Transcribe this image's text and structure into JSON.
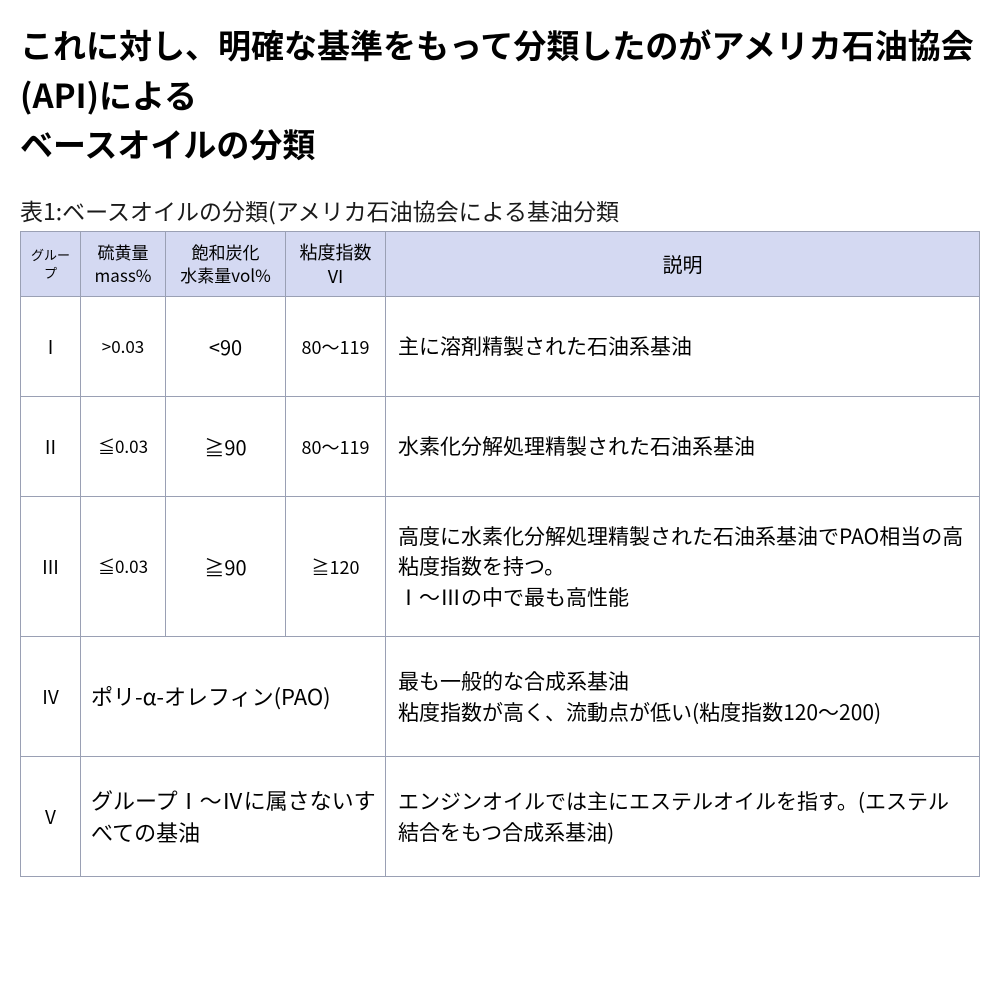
{
  "heading": "これに対し、明確な基準をもって分類したのがアメリカ石油協会(API)による\nベースオイルの分類",
  "caption": "表1:ベースオイルの分類(アメリカ石油協会による基油分類",
  "table": {
    "header_bg": "#d4d9f2",
    "border_color": "#9aa0b4",
    "columns": {
      "group": "グループ",
      "sulfur_l1": "硫黄量",
      "sulfur_l2": "mass%",
      "sat_l1": "飽和炭化",
      "sat_l2": "水素量vol%",
      "vi_l1": "粘度指数",
      "vi_l2": "VI",
      "desc": "説明"
    },
    "rows": [
      {
        "group": "I",
        "sulfur": ">0.03",
        "sat": "<90",
        "vi": "80〜119",
        "desc": "主に溶剤精製された石油系基油"
      },
      {
        "group": "II",
        "sulfur": "≦0.03",
        "sat": "≧90",
        "vi": "80〜119",
        "desc": "水素化分解処理精製された石油系基油"
      },
      {
        "group": "III",
        "sulfur": "≦0.03",
        "sat": "≧90",
        "vi": "≧120",
        "desc": "高度に水素化分解処理精製された石油系基油でPAO相当の高粘度指数を持つ。\nⅠ〜Ⅲの中で最も高性能"
      },
      {
        "group": "IV",
        "merged": "ポリ-α-オレフィン(PAO)",
        "desc": "最も一般的な合成系基油\n粘度指数が高く、流動点が低い(粘度指数120〜200)"
      },
      {
        "group": "V",
        "merged": "グループⅠ〜Ⅳに属さないすべての基油",
        "desc": "エンジンオイルでは主にエステルオイルを指す。(エステル結合をもつ合成系基油)"
      }
    ]
  }
}
